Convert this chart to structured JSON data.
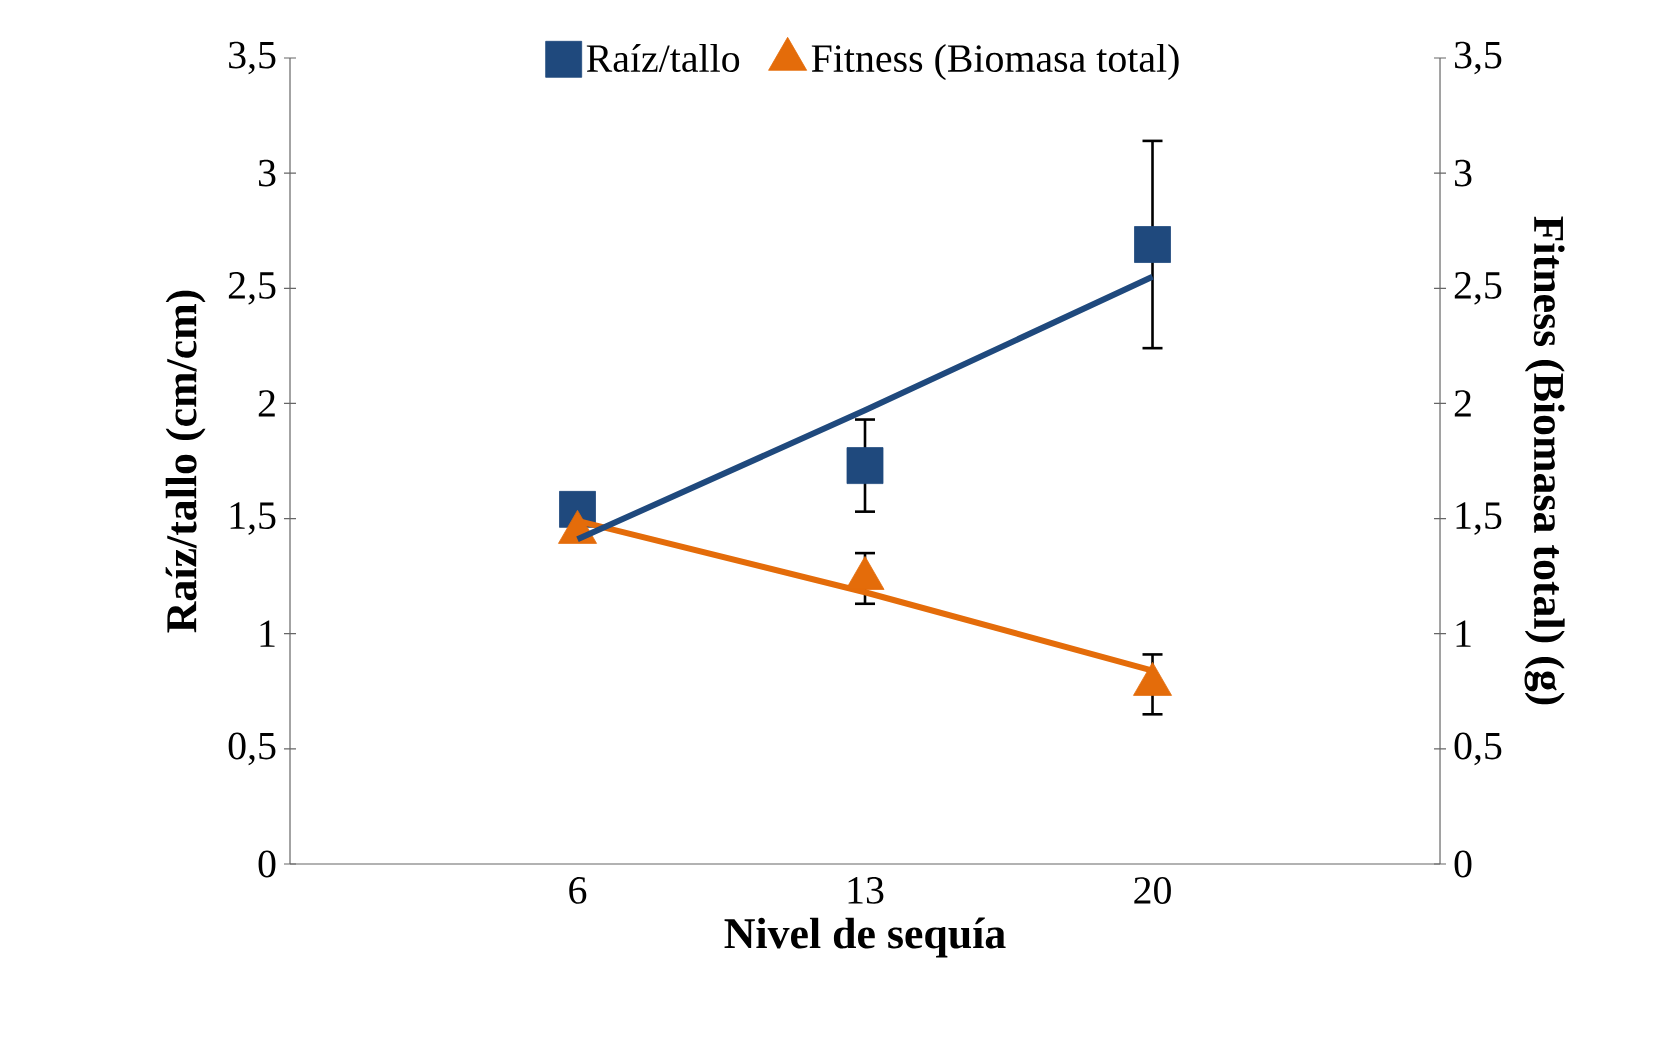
{
  "chart_data": {
    "type": "scatter",
    "xlabel": "Nivel de sequía",
    "ylabel": "Raíz/tallo (cm/cm)",
    "y2label": "Fitness (Biomasa total) (g)",
    "categories": [
      "6",
      "13",
      "20"
    ],
    "series": [
      {
        "name": "Raíz/tallo",
        "color": "#1f497d",
        "marker": "square",
        "values": [
          1.54,
          1.73,
          2.69
        ],
        "errors": [
          null,
          0.2,
          0.45
        ]
      },
      {
        "type": "line",
        "color": "#1f497d",
        "marker": "none",
        "line_style": "solid",
        "values": [
          1.41,
          1.97,
          2.55
        ]
      },
      {
        "name": "Fitness (Biomasa total)",
        "color": "#e46c0a",
        "marker": "triangle",
        "axis": "y2",
        "values": [
          1.44,
          1.24,
          0.78
        ],
        "errors": [
          null,
          0.11,
          0.13
        ]
      },
      {
        "type": "line",
        "color": "#e46c0a",
        "marker": "none",
        "line_style": "solid",
        "axis": "y2",
        "values": [
          1.49,
          1.18,
          0.84
        ]
      }
    ],
    "ylim": [
      0,
      3.5
    ],
    "yticks": [
      0,
      {
        "value": 0.5,
        "label": "0,5"
      },
      1,
      {
        "value": 1.5,
        "label": "1,5"
      },
      2,
      {
        "value": 2.5,
        "label": "2,5"
      },
      3,
      {
        "value": 3.5,
        "label": "3,5"
      }
    ],
    "y2lim": [
      0,
      3.5
    ],
    "y2ticks": [
      0,
      {
        "value": 0.5,
        "label": "0,5"
      },
      1,
      {
        "value": 1.5,
        "label": "1,5"
      },
      2,
      {
        "value": 2.5,
        "label": "2,5"
      },
      3,
      {
        "value": 3.5,
        "label": "3,5"
      }
    ],
    "legend": "top"
  }
}
